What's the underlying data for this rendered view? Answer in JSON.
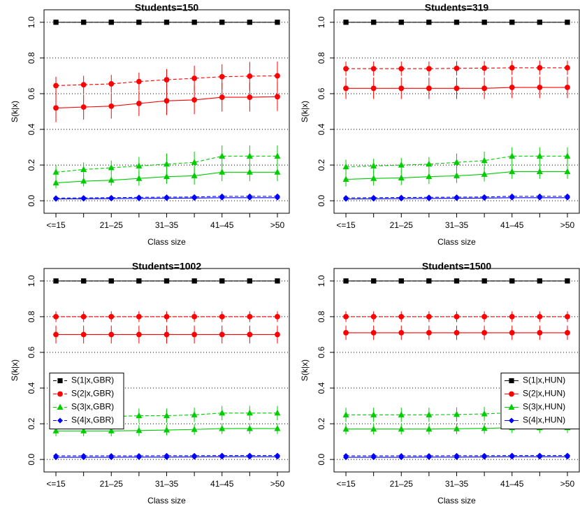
{
  "chart_data": [
    {
      "type": "line",
      "title": "Students=150",
      "xlabel": "Class size",
      "ylabel": "S(k|x)",
      "categories": [
        "<=15",
        null,
        "21–25",
        null,
        "31–35",
        null,
        "41–45",
        null,
        ">50"
      ],
      "ylim": [
        -0.07,
        1.07
      ],
      "yticks": [
        {
          "value": 0,
          "label": "0.0"
        },
        0.2,
        0.4,
        0.6,
        0.8,
        {
          "value": 1,
          "label": "1.0"
        }
      ],
      "grid": true,
      "legend": false,
      "series": [
        {
          "name": "S(1|x,GBR)",
          "color": "#000000",
          "marker": "square",
          "dashed": true,
          "values": [
            1,
            1,
            1,
            1,
            1,
            1,
            1,
            1,
            1
          ]
        },
        {
          "name": "S(2|x,GBR)",
          "color": "#ff0000",
          "marker": "circle",
          "dashed": true,
          "values": [
            0.645,
            0.65,
            0.655,
            0.668,
            0.678,
            0.686,
            0.695,
            0.698,
            0.7
          ],
          "errors": [
            0.05,
            0.05,
            0.05,
            0.05,
            0.06,
            0.07,
            0.07,
            0.08,
            0.08
          ]
        },
        {
          "name": "S(3|x,GBR)",
          "color": "#00cd00",
          "marker": "triangle",
          "dashed": true,
          "values": [
            0.16,
            0.175,
            0.185,
            0.195,
            0.205,
            0.215,
            0.25,
            0.25,
            0.25
          ],
          "errors": [
            0.04,
            0.04,
            0.04,
            0.05,
            0.06,
            0.06,
            0.06,
            0.06,
            0.06
          ]
        },
        {
          "name": "S(4|x,GBR)",
          "color": "#0000ff",
          "marker": "diamond",
          "dashed": true,
          "values": [
            0.015,
            0.016,
            0.017,
            0.019,
            0.02,
            0.021,
            0.025,
            0.025,
            0.025
          ]
        },
        {
          "name": "S(1|x,HUN)",
          "color": "#000000",
          "marker": "square",
          "dashed": false,
          "values": [
            1,
            1,
            1,
            1,
            1,
            1,
            1,
            1,
            1
          ]
        },
        {
          "name": "S(2|x,HUN)",
          "color": "#ff0000",
          "marker": "circle",
          "dashed": false,
          "values": [
            0.52,
            0.525,
            0.53,
            0.545,
            0.56,
            0.565,
            0.58,
            0.58,
            0.583
          ],
          "errors": [
            0.08,
            0.07,
            0.07,
            0.07,
            0.08,
            0.08,
            0.08,
            0.08,
            0.08
          ]
        },
        {
          "name": "S(3|x,HUN)",
          "color": "#00cd00",
          "marker": "triangle",
          "dashed": false,
          "values": [
            0.1,
            0.11,
            0.115,
            0.125,
            0.135,
            0.14,
            0.16,
            0.16,
            0.16
          ],
          "errors": [
            0.03,
            0.03,
            0.03,
            0.04,
            0.04,
            0.05,
            0.05,
            0.05,
            0.05
          ]
        },
        {
          "name": "S(4|x,HUN)",
          "color": "#0000ff",
          "marker": "diamond",
          "dashed": false,
          "values": [
            0.01,
            0.011,
            0.012,
            0.013,
            0.014,
            0.015,
            0.017,
            0.017,
            0.017
          ]
        }
      ]
    },
    {
      "type": "line",
      "title": "Students=319",
      "xlabel": "Class size",
      "ylabel": "S(k|x)",
      "categories": [
        "<=15",
        null,
        "21–25",
        null,
        "31–35",
        null,
        "41–45",
        null,
        ">50"
      ],
      "ylim": [
        -0.07,
        1.07
      ],
      "yticks": [
        {
          "value": 0,
          "label": "0.0"
        },
        0.2,
        0.4,
        0.6,
        0.8,
        {
          "value": 1,
          "label": "1.0"
        }
      ],
      "grid": true,
      "legend": false,
      "series": [
        {
          "name": "S(1|x,GBR)",
          "color": "#000000",
          "marker": "square",
          "dashed": true,
          "values": [
            1,
            1,
            1,
            1,
            1,
            1,
            1,
            1,
            1
          ]
        },
        {
          "name": "S(2|x,GBR)",
          "color": "#ff0000",
          "marker": "circle",
          "dashed": true,
          "values": [
            0.74,
            0.74,
            0.74,
            0.74,
            0.742,
            0.743,
            0.745,
            0.745,
            0.745
          ],
          "errors": [
            0.04,
            0.04,
            0.04,
            0.04,
            0.04,
            0.04,
            0.04,
            0.04,
            0.04
          ]
        },
        {
          "name": "S(3|x,GBR)",
          "color": "#00cd00",
          "marker": "triangle",
          "dashed": true,
          "values": [
            0.19,
            0.195,
            0.2,
            0.205,
            0.215,
            0.225,
            0.25,
            0.25,
            0.25
          ],
          "errors": [
            0.04,
            0.04,
            0.04,
            0.04,
            0.05,
            0.05,
            0.05,
            0.05,
            0.05
          ]
        },
        {
          "name": "S(4|x,GBR)",
          "color": "#0000ff",
          "marker": "diamond",
          "dashed": true,
          "values": [
            0.016,
            0.017,
            0.018,
            0.019,
            0.02,
            0.021,
            0.025,
            0.025,
            0.025
          ]
        },
        {
          "name": "S(1|x,HUN)",
          "color": "#000000",
          "marker": "square",
          "dashed": false,
          "values": [
            1,
            1,
            1,
            1,
            1,
            1,
            1,
            1,
            1
          ]
        },
        {
          "name": "S(2|x,HUN)",
          "color": "#ff0000",
          "marker": "circle",
          "dashed": false,
          "values": [
            0.63,
            0.63,
            0.63,
            0.63,
            0.63,
            0.63,
            0.635,
            0.635,
            0.635
          ],
          "errors": [
            0.06,
            0.06,
            0.06,
            0.06,
            0.06,
            0.06,
            0.06,
            0.06,
            0.06
          ]
        },
        {
          "name": "S(3|x,HUN)",
          "color": "#00cd00",
          "marker": "triangle",
          "dashed": false,
          "values": [
            0.12,
            0.125,
            0.128,
            0.135,
            0.14,
            0.148,
            0.163,
            0.163,
            0.163
          ],
          "errors": [
            0.04,
            0.04,
            0.04,
            0.04,
            0.04,
            0.04,
            0.04,
            0.04,
            0.04
          ]
        },
        {
          "name": "S(4|x,HUN)",
          "color": "#0000ff",
          "marker": "diamond",
          "dashed": false,
          "values": [
            0.01,
            0.011,
            0.012,
            0.013,
            0.014,
            0.015,
            0.017,
            0.017,
            0.017
          ]
        }
      ]
    },
    {
      "type": "line",
      "title": "Students=1002",
      "xlabel": "Class size",
      "ylabel": "S(k|x)",
      "categories": [
        "<=15",
        null,
        "21–25",
        null,
        "31–35",
        null,
        "41–45",
        null,
        ">50"
      ],
      "ylim": [
        -0.07,
        1.07
      ],
      "yticks": [
        {
          "value": 0,
          "label": "0.0"
        },
        0.2,
        0.4,
        0.6,
        0.8,
        {
          "value": 1,
          "label": "1.0"
        }
      ],
      "grid": true,
      "legend": {
        "loc": "center left",
        "series": [
          0,
          1,
          2,
          3
        ]
      },
      "series": [
        {
          "name": "S(1|x,GBR)",
          "color": "#000000",
          "marker": "square",
          "dashed": true,
          "values": [
            1,
            1,
            1,
            1,
            1,
            1,
            1,
            1,
            1
          ]
        },
        {
          "name": "S(2|x,GBR)",
          "color": "#ff0000",
          "marker": "circle",
          "dashed": true,
          "values": [
            0.8,
            0.8,
            0.8,
            0.8,
            0.8,
            0.8,
            0.8,
            0.8,
            0.8
          ],
          "errors": [
            0.03,
            0.03,
            0.03,
            0.03,
            0.03,
            0.03,
            0.03,
            0.03,
            0.03
          ]
        },
        {
          "name": "S(3|x,GBR)",
          "color": "#00cd00",
          "marker": "triangle",
          "dashed": true,
          "values": [
            0.24,
            0.24,
            0.24,
            0.245,
            0.245,
            0.25,
            0.26,
            0.26,
            0.26
          ],
          "errors": [
            0.04,
            0.04,
            0.04,
            0.04,
            0.04,
            0.04,
            0.04,
            0.04,
            0.04
          ]
        },
        {
          "name": "S(4|x,GBR)",
          "color": "#0000ff",
          "marker": "diamond",
          "dashed": true,
          "values": [
            0.02,
            0.02,
            0.02,
            0.02,
            0.021,
            0.021,
            0.022,
            0.022,
            0.022
          ]
        },
        {
          "name": "S(1|x,HUN)",
          "color": "#000000",
          "marker": "square",
          "dashed": false,
          "values": [
            1,
            1,
            1,
            1,
            1,
            1,
            1,
            1,
            1
          ]
        },
        {
          "name": "S(2|x,HUN)",
          "color": "#ff0000",
          "marker": "circle",
          "dashed": false,
          "values": [
            0.7,
            0.7,
            0.7,
            0.7,
            0.7,
            0.7,
            0.7,
            0.7,
            0.7
          ],
          "errors": [
            0.05,
            0.05,
            0.05,
            0.05,
            0.05,
            0.05,
            0.05,
            0.05,
            0.05
          ]
        },
        {
          "name": "S(3|x,HUN)",
          "color": "#00cd00",
          "marker": "triangle",
          "dashed": false,
          "values": [
            0.16,
            0.16,
            0.16,
            0.162,
            0.165,
            0.168,
            0.173,
            0.173,
            0.173
          ],
          "errors": [
            0.03,
            0.03,
            0.03,
            0.03,
            0.03,
            0.03,
            0.03,
            0.03,
            0.03
          ]
        },
        {
          "name": "S(4|x,HUN)",
          "color": "#0000ff",
          "marker": "diamond",
          "dashed": false,
          "values": [
            0.012,
            0.012,
            0.012,
            0.013,
            0.013,
            0.014,
            0.015,
            0.015,
            0.015
          ]
        }
      ]
    },
    {
      "type": "line",
      "title": "Students=1500",
      "xlabel": "Class size",
      "ylabel": "S(k|x)",
      "categories": [
        "<=15",
        null,
        "21–25",
        null,
        "31–35",
        null,
        "41–45",
        null,
        ">50"
      ],
      "ylim": [
        -0.07,
        1.07
      ],
      "yticks": [
        {
          "value": 0,
          "label": "0.0"
        },
        0.2,
        0.4,
        0.6,
        0.8,
        {
          "value": 1,
          "label": "1.0"
        }
      ],
      "grid": true,
      "legend": {
        "loc": "center right",
        "series": [
          4,
          5,
          6,
          7
        ]
      },
      "series": [
        {
          "name": "S(1|x,GBR)",
          "color": "#000000",
          "marker": "square",
          "dashed": true,
          "values": [
            1,
            1,
            1,
            1,
            1,
            1,
            1,
            1,
            1
          ]
        },
        {
          "name": "S(2|x,GBR)",
          "color": "#ff0000",
          "marker": "circle",
          "dashed": true,
          "values": [
            0.8,
            0.8,
            0.8,
            0.8,
            0.8,
            0.8,
            0.8,
            0.8,
            0.8
          ],
          "errors": [
            0.03,
            0.03,
            0.03,
            0.03,
            0.03,
            0.03,
            0.03,
            0.03,
            0.03
          ]
        },
        {
          "name": "S(3|x,GBR)",
          "color": "#00cd00",
          "marker": "triangle",
          "dashed": true,
          "values": [
            0.25,
            0.25,
            0.25,
            0.25,
            0.252,
            0.255,
            0.262,
            0.262,
            0.262
          ],
          "errors": [
            0.04,
            0.04,
            0.04,
            0.04,
            0.04,
            0.04,
            0.04,
            0.04,
            0.04
          ]
        },
        {
          "name": "S(4|x,GBR)",
          "color": "#0000ff",
          "marker": "diamond",
          "dashed": true,
          "values": [
            0.02,
            0.02,
            0.02,
            0.02,
            0.021,
            0.021,
            0.022,
            0.022,
            0.022
          ]
        },
        {
          "name": "S(1|x,HUN)",
          "color": "#000000",
          "marker": "square",
          "dashed": false,
          "values": [
            1,
            1,
            1,
            1,
            1,
            1,
            1,
            1,
            1
          ]
        },
        {
          "name": "S(2|x,HUN)",
          "color": "#ff0000",
          "marker": "circle",
          "dashed": false,
          "values": [
            0.71,
            0.71,
            0.71,
            0.71,
            0.71,
            0.71,
            0.71,
            0.71,
            0.71
          ],
          "errors": [
            0.04,
            0.04,
            0.04,
            0.04,
            0.04,
            0.04,
            0.04,
            0.04,
            0.04
          ]
        },
        {
          "name": "S(3|x,HUN)",
          "color": "#00cd00",
          "marker": "triangle",
          "dashed": false,
          "values": [
            0.17,
            0.17,
            0.17,
            0.17,
            0.172,
            0.174,
            0.178,
            0.178,
            0.178
          ],
          "errors": [
            0.03,
            0.03,
            0.03,
            0.03,
            0.03,
            0.03,
            0.03,
            0.03,
            0.03
          ]
        },
        {
          "name": "S(4|x,HUN)",
          "color": "#0000ff",
          "marker": "diamond",
          "dashed": false,
          "values": [
            0.012,
            0.012,
            0.012,
            0.013,
            0.013,
            0.014,
            0.015,
            0.015,
            0.015
          ]
        }
      ]
    }
  ]
}
